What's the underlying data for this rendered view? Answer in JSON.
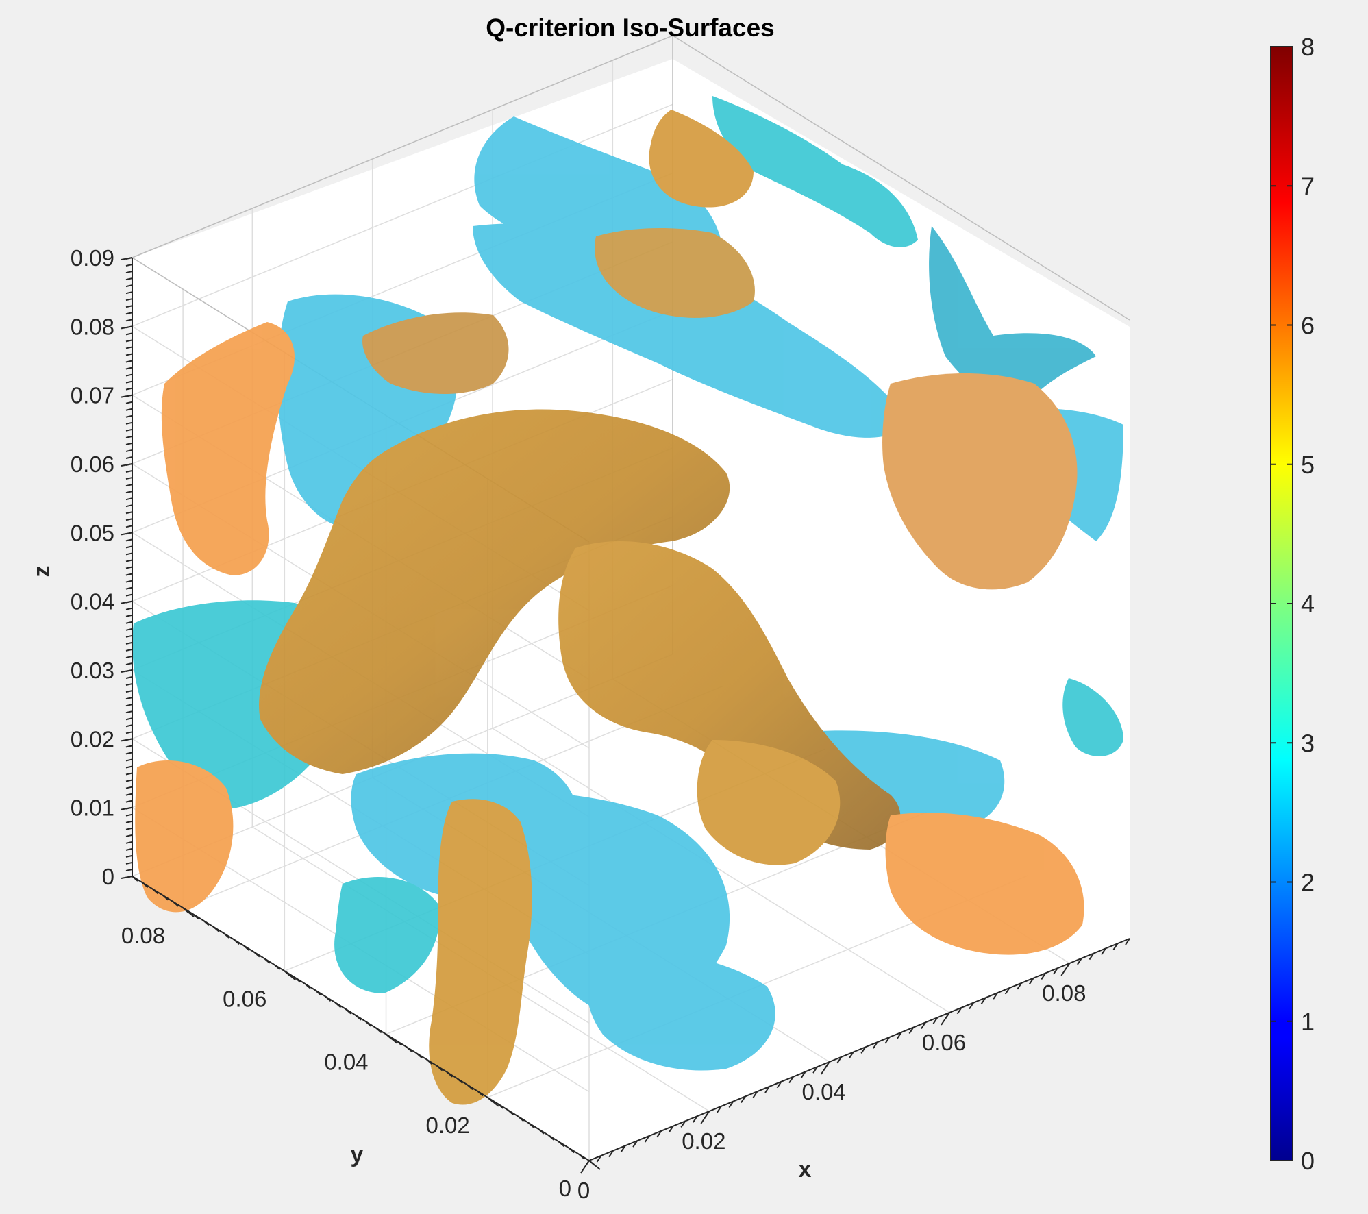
{
  "chart_data": {
    "type": "3d-isosurface",
    "title": "Q-criterion Iso-Surfaces",
    "xlabel": "x",
    "ylabel": "y",
    "zlabel": "z",
    "xlim": [
      0,
      0.09
    ],
    "ylim": [
      0,
      0.09
    ],
    "zlim": [
      0,
      0.09
    ],
    "x_ticks": [
      "0",
      "0.02",
      "0.04",
      "0.06",
      "0.08"
    ],
    "y_ticks": [
      "0",
      "0.02",
      "0.04",
      "0.06",
      "0.08"
    ],
    "z_ticks": [
      "0",
      "0.01",
      "0.02",
      "0.03",
      "0.04",
      "0.05",
      "0.06",
      "0.07",
      "0.08",
      "0.09"
    ],
    "grid": true,
    "colorbar": {
      "colormap": "jet",
      "limits": [
        0,
        8
      ],
      "ticks": [
        "0",
        "1",
        "2",
        "3",
        "4",
        "5",
        "6",
        "7",
        "8"
      ],
      "placement": "right"
    },
    "surface_colors": {
      "orange": "#f5a04e",
      "cyan": "#4fc6e6"
    }
  }
}
